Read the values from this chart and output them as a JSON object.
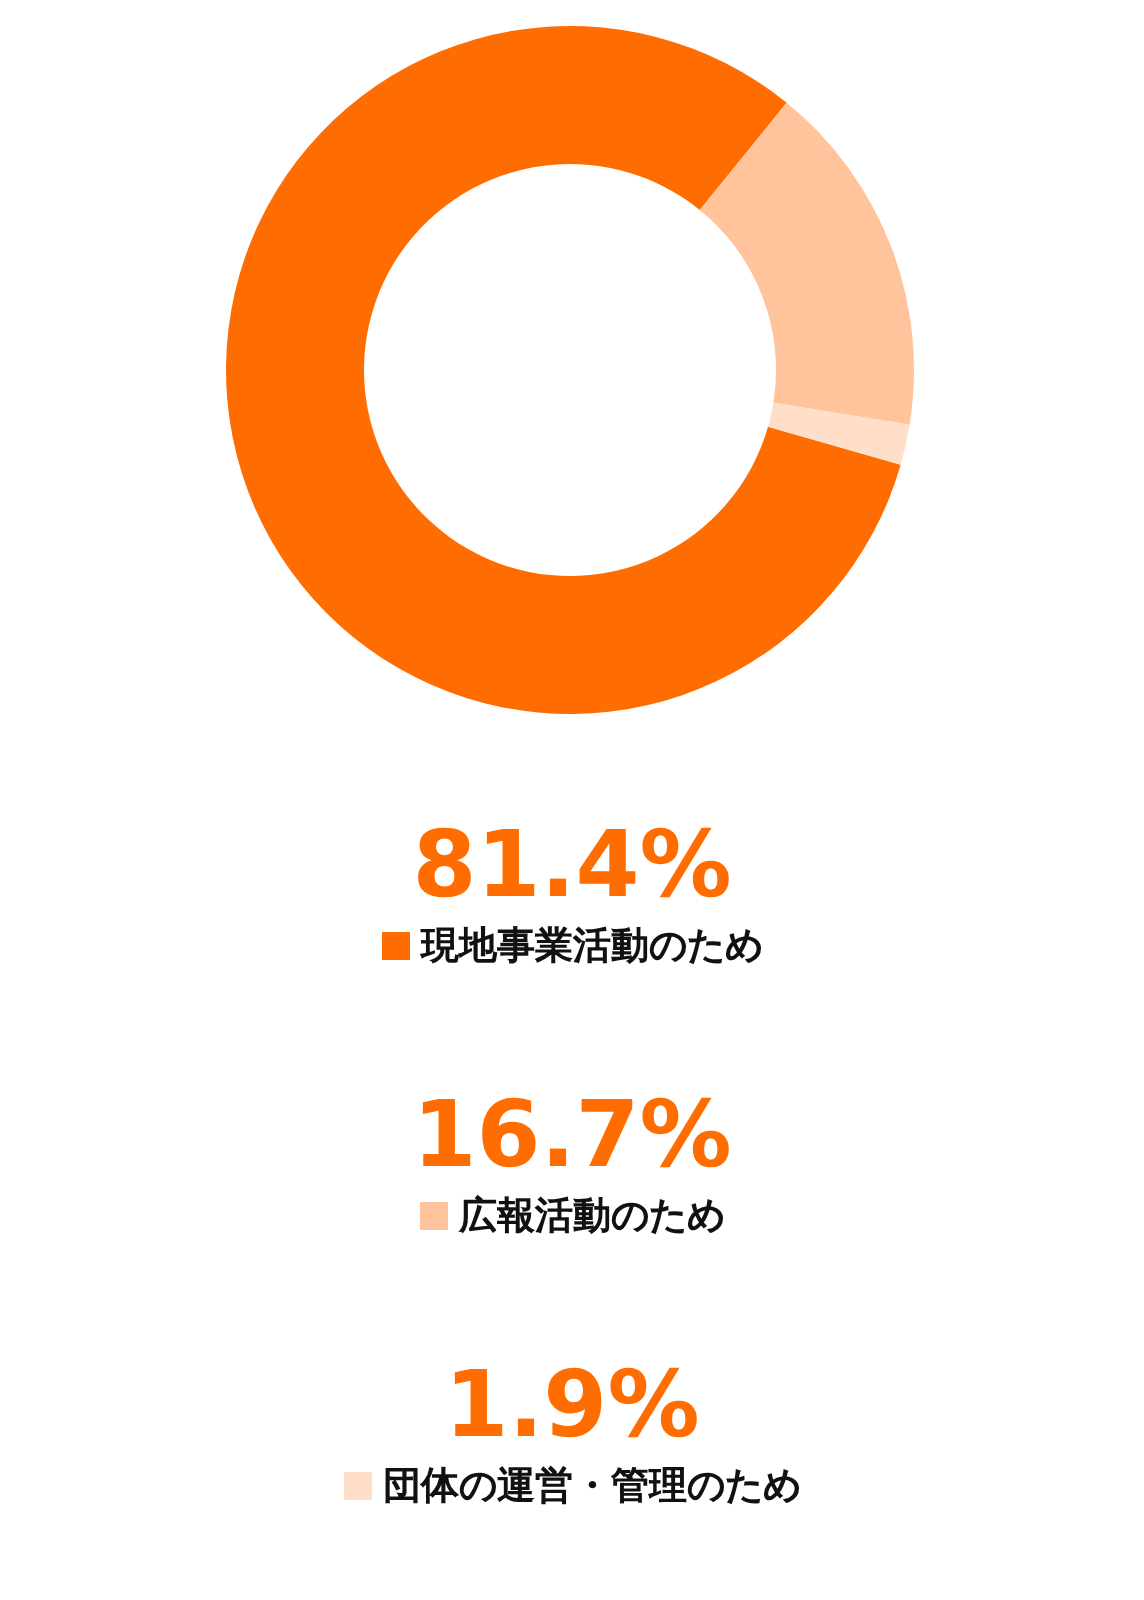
{
  "chart_data": {
    "type": "donut",
    "categories": [
      "現地事業活動のため",
      "広報活動のため",
      "団体の運営・管理のため"
    ],
    "values": [
      81.4,
      16.7,
      1.9
    ],
    "colors": [
      "#ff6d00",
      "#ffc49b",
      "#ffdfca"
    ],
    "value_labels": [
      "81.4%",
      "16.7%",
      "1.9%"
    ],
    "legend": "bottom"
  }
}
